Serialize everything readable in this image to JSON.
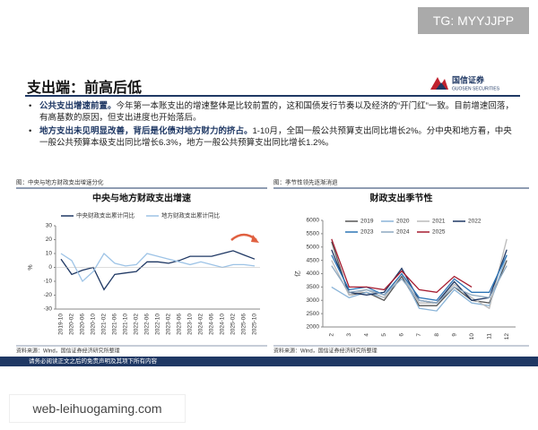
{
  "watermark_top": "TG: MYYJJPP",
  "watermark_bottom": "web-leihuogaming.com",
  "slide_title": "支出端：前高后低",
  "logo": {
    "name": "国信证券",
    "sub": "GUOSEN SECURITIES"
  },
  "bullets": [
    {
      "lead": "公共支出增速前置。",
      "text": "今年第一本账支出的增速整体是比较前置的，这和国债发行节奏以及经济的“开门红”一致。目前增速回落，有高基数的原因，但支出进度也开始落后。"
    },
    {
      "lead": "地方支出未见明显改善，背后是化债对地方财力的挤占。",
      "text": "1-10月，全国一般公共预算支出同比增长2%。分中央和地方看，中央一般公共预算本级支出同比增长6.3%，地方一般公共预算支出同比增长1.2%。"
    }
  ],
  "footer": "请务必阅读正文之后的免责声明及其项下所有内容",
  "chart_data": [
    {
      "type": "line",
      "caption": "图：中央与地方财政支出增速分化",
      "title": "中央与地方财政支出增速",
      "source": "资料来源：Wind，国信证券经济研究所整理",
      "y_label": "%",
      "categories": [
        "2019-10",
        "2020-02",
        "2020-06",
        "2020-10",
        "2021-02",
        "2021-06",
        "2021-10",
        "2022-02",
        "2022-06",
        "2022-10",
        "2023-02",
        "2023-06",
        "2023-10",
        "2024-02",
        "2024-06",
        "2024-10",
        "2025-02",
        "2025-06",
        "2025-10"
      ],
      "series": [
        {
          "name": "中央财政支出累计同比",
          "color": "#1f3864",
          "values": [
            6,
            -5,
            -2,
            0,
            -16,
            -5,
            -4,
            -3,
            4,
            4,
            3,
            5,
            8,
            8,
            8,
            10,
            12,
            9,
            6
          ]
        },
        {
          "name": "地方财政支出累计同比",
          "color": "#9dc3e6",
          "values": [
            10,
            5,
            -10,
            -3,
            10,
            3,
            1,
            2,
            10,
            8,
            6,
            4,
            2,
            4,
            2,
            0,
            2,
            2,
            1
          ]
        }
      ],
      "ylim": [
        -30,
        30
      ],
      "yticks": [
        -30,
        -20,
        -10,
        0,
        10,
        20,
        30
      ],
      "legend": "upper-left",
      "grid": false
    },
    {
      "type": "line",
      "caption": "图：季节性领先逐渐消退",
      "title": "财政支出季节性",
      "source": "资料来源：Wind，国信证券经济研究所整理",
      "y_label": "亿",
      "categories": [
        "2",
        "3",
        "4",
        "5",
        "6",
        "7",
        "8",
        "9",
        "10",
        "11",
        "12"
      ],
      "series": [
        {
          "name": "2019",
          "color": "#555555",
          "values": [
            5200,
            3200,
            3300,
            3000,
            3900,
            2800,
            2800,
            3500,
            3000,
            2900,
            4500
          ]
        },
        {
          "name": "2020",
          "color": "#8ab4d8",
          "values": [
            3500,
            3100,
            3300,
            3100,
            4000,
            2700,
            2600,
            3400,
            2900,
            2800,
            4700
          ]
        },
        {
          "name": "2021",
          "color": "#bbbbbb",
          "values": [
            4500,
            3200,
            3400,
            3100,
            4000,
            2900,
            2900,
            3600,
            3100,
            2700,
            5300
          ]
        },
        {
          "name": "2022",
          "color": "#1f3864",
          "values": [
            4900,
            3300,
            3200,
            3300,
            4200,
            3000,
            2900,
            3700,
            3000,
            3100,
            4900
          ]
        },
        {
          "name": "2023",
          "color": "#2e75b6",
          "values": [
            4700,
            3400,
            3500,
            3200,
            4000,
            3100,
            3000,
            3800,
            3300,
            3300,
            4700
          ]
        },
        {
          "name": "2024",
          "color": "#8ea9c1",
          "values": [
            4300,
            3300,
            3400,
            3200,
            3800,
            3000,
            2900,
            3500,
            3200,
            3100,
            4300
          ]
        },
        {
          "name": "2025",
          "color": "#a51c30",
          "values": [
            5300,
            3500,
            3500,
            3400,
            4100,
            3400,
            3300,
            3900,
            3500,
            null,
            null
          ]
        }
      ],
      "ylim": [
        2000,
        6000
      ],
      "yticks": [
        2000,
        2500,
        3000,
        3500,
        4000,
        4500,
        5000,
        5500,
        6000
      ],
      "legend": "upper-center",
      "grid": false
    }
  ]
}
